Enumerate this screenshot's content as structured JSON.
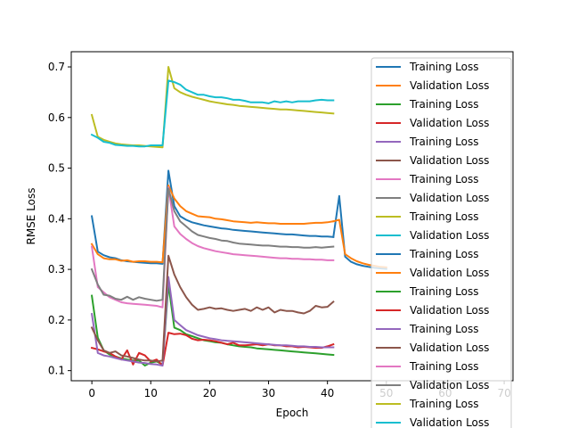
{
  "chart_data": {
    "type": "line",
    "title": "",
    "xlabel": "Epoch",
    "ylabel": "RMSE Loss",
    "xlim": [
      -3.5,
      71.5
    ],
    "ylim": [
      0.08,
      0.73
    ],
    "xticks": [
      0,
      10,
      20,
      30,
      40,
      50,
      60,
      70
    ],
    "yticks": [
      0.1,
      0.2,
      0.3,
      0.4,
      0.5,
      0.6,
      0.7
    ],
    "xtick_labels": [
      "0",
      "10",
      "20",
      "30",
      "40",
      "50",
      "60",
      "70"
    ],
    "ytick_labels": [
      "0.1",
      "0.2",
      "0.3",
      "0.4",
      "0.5",
      "0.6",
      "0.7"
    ],
    "grid": false,
    "legend_position": "top-right",
    "series": [
      {
        "name": "Training Loss",
        "color": "#1f77b4",
        "x": [
          0,
          1,
          2,
          3,
          4,
          5,
          6,
          7,
          8,
          9,
          10,
          11,
          12,
          13,
          14,
          15,
          16,
          17,
          18,
          19,
          20,
          21,
          22,
          23,
          24,
          25,
          26,
          27,
          28,
          29,
          30,
          31,
          32,
          33,
          34,
          35,
          36,
          37,
          38,
          39,
          40,
          41
        ],
        "y": [
          0.405,
          0.335,
          0.328,
          0.324,
          0.322,
          0.318,
          0.316,
          0.315,
          0.314,
          0.313,
          0.312,
          0.312,
          0.311,
          0.495,
          0.425,
          0.405,
          0.398,
          0.393,
          0.39,
          0.387,
          0.385,
          0.383,
          0.381,
          0.38,
          0.378,
          0.377,
          0.376,
          0.375,
          0.374,
          0.373,
          0.372,
          0.371,
          0.37,
          0.369,
          0.369,
          0.368,
          0.367,
          0.366,
          0.366,
          0.365,
          0.365,
          0.364
        ]
      },
      {
        "name": "Validation Loss",
        "color": "#ff7f0e",
        "x": [
          0,
          1,
          2,
          3,
          4,
          5,
          6,
          7,
          8,
          9,
          10,
          11,
          12,
          13,
          14,
          15,
          16,
          17,
          18,
          19,
          20,
          21,
          22,
          23,
          24,
          25,
          26,
          27,
          28,
          29,
          30,
          31,
          32,
          33,
          34,
          35,
          36,
          37,
          38,
          39,
          40,
          41
        ],
        "y": [
          0.35,
          0.33,
          0.322,
          0.32,
          0.32,
          0.317,
          0.318,
          0.315,
          0.316,
          0.316,
          0.315,
          0.315,
          0.314,
          0.466,
          0.44,
          0.425,
          0.415,
          0.41,
          0.405,
          0.404,
          0.403,
          0.4,
          0.399,
          0.397,
          0.395,
          0.394,
          0.393,
          0.392,
          0.393,
          0.392,
          0.391,
          0.391,
          0.39,
          0.39,
          0.39,
          0.39,
          0.39,
          0.391,
          0.392,
          0.392,
          0.393,
          0.395
        ]
      },
      {
        "name": "Training Loss",
        "color": "#2ca02c",
        "x": [
          0,
          1,
          2,
          3,
          4,
          5,
          6,
          7,
          8,
          9,
          10,
          11,
          12,
          13,
          14,
          15,
          16,
          17,
          18,
          19,
          20,
          21,
          22,
          23,
          24,
          25,
          26,
          27,
          28,
          29,
          30,
          31,
          32,
          33,
          34,
          35,
          36,
          37,
          38,
          39,
          40,
          41
        ],
        "y": [
          0.248,
          0.165,
          0.14,
          0.132,
          0.128,
          0.124,
          0.122,
          0.12,
          0.12,
          0.11,
          0.116,
          0.118,
          0.112,
          0.27,
          0.185,
          0.18,
          0.172,
          0.168,
          0.164,
          0.16,
          0.158,
          0.156,
          0.155,
          0.152,
          0.15,
          0.148,
          0.147,
          0.146,
          0.144,
          0.143,
          0.142,
          0.141,
          0.14,
          0.139,
          0.138,
          0.137,
          0.136,
          0.135,
          0.134,
          0.133,
          0.132,
          0.131
        ]
      },
      {
        "name": "Validation Loss",
        "color": "#d62728",
        "x": [
          0,
          1,
          2,
          3,
          4,
          5,
          6,
          7,
          8,
          9,
          10,
          11,
          12,
          13,
          14,
          15,
          16,
          17,
          18,
          19,
          20,
          21,
          22,
          23,
          24,
          25,
          26,
          27,
          28,
          29,
          30,
          31,
          32,
          33,
          34,
          35,
          36,
          37,
          38,
          39,
          40,
          41
        ],
        "y": [
          0.145,
          0.142,
          0.138,
          0.135,
          0.128,
          0.122,
          0.14,
          0.112,
          0.135,
          0.13,
          0.118,
          0.122,
          0.11,
          0.175,
          0.172,
          0.173,
          0.17,
          0.163,
          0.16,
          0.161,
          0.16,
          0.158,
          0.155,
          0.152,
          0.155,
          0.15,
          0.15,
          0.151,
          0.152,
          0.15,
          0.152,
          0.15,
          0.15,
          0.148,
          0.148,
          0.146,
          0.147,
          0.146,
          0.145,
          0.145,
          0.148,
          0.152
        ]
      },
      {
        "name": "Training Loss",
        "color": "#9467bd",
        "x": [
          0,
          1,
          2,
          3,
          4,
          5,
          6,
          7,
          8,
          9,
          10,
          11,
          12,
          13,
          14,
          15,
          16,
          17,
          18,
          19,
          20,
          21,
          22,
          23,
          24,
          25,
          26,
          27,
          28,
          29,
          30,
          31,
          32,
          33,
          34,
          35,
          36,
          37,
          38,
          39,
          40,
          41
        ],
        "y": [
          0.212,
          0.135,
          0.13,
          0.128,
          0.125,
          0.122,
          0.12,
          0.118,
          0.116,
          0.115,
          0.113,
          0.112,
          0.11,
          0.285,
          0.2,
          0.19,
          0.18,
          0.175,
          0.17,
          0.167,
          0.164,
          0.162,
          0.16,
          0.159,
          0.158,
          0.157,
          0.156,
          0.155,
          0.154,
          0.153,
          0.152,
          0.151,
          0.15,
          0.15,
          0.149,
          0.148,
          0.148,
          0.147,
          0.147,
          0.146,
          0.146,
          0.146
        ]
      },
      {
        "name": "Validation Loss",
        "color": "#8c564b",
        "x": [
          0,
          1,
          2,
          3,
          4,
          5,
          6,
          7,
          8,
          9,
          10,
          11,
          12,
          13,
          14,
          15,
          16,
          17,
          18,
          19,
          20,
          21,
          22,
          23,
          24,
          25,
          26,
          27,
          28,
          29,
          30,
          31,
          32,
          33,
          34,
          35,
          36,
          37,
          38,
          39,
          40,
          41
        ],
        "y": [
          0.185,
          0.16,
          0.14,
          0.135,
          0.138,
          0.13,
          0.128,
          0.125,
          0.122,
          0.12,
          0.12,
          0.118,
          0.12,
          0.327,
          0.29,
          0.265,
          0.245,
          0.23,
          0.22,
          0.222,
          0.225,
          0.222,
          0.223,
          0.22,
          0.218,
          0.22,
          0.222,
          0.218,
          0.225,
          0.22,
          0.225,
          0.215,
          0.22,
          0.218,
          0.218,
          0.215,
          0.213,
          0.218,
          0.228,
          0.225,
          0.226,
          0.236
        ]
      },
      {
        "name": "Training Loss",
        "color": "#e377c2",
        "x": [
          0,
          1,
          2,
          3,
          4,
          5,
          6,
          7,
          8,
          9,
          10,
          11,
          12,
          13,
          14,
          15,
          16,
          17,
          18,
          19,
          20,
          21,
          22,
          23,
          24,
          25,
          26,
          27,
          28,
          29,
          30,
          31,
          32,
          33,
          34,
          35,
          36,
          37,
          38,
          39,
          40,
          41
        ],
        "y": [
          0.345,
          0.265,
          0.255,
          0.245,
          0.24,
          0.235,
          0.233,
          0.232,
          0.231,
          0.23,
          0.229,
          0.228,
          0.225,
          0.462,
          0.385,
          0.37,
          0.36,
          0.352,
          0.346,
          0.342,
          0.339,
          0.336,
          0.334,
          0.332,
          0.33,
          0.329,
          0.328,
          0.327,
          0.326,
          0.325,
          0.324,
          0.323,
          0.322,
          0.322,
          0.321,
          0.321,
          0.32,
          0.32,
          0.319,
          0.319,
          0.318,
          0.318
        ]
      },
      {
        "name": "Validation Loss",
        "color": "#7f7f7f",
        "x": [
          0,
          1,
          2,
          3,
          4,
          5,
          6,
          7,
          8,
          9,
          10,
          11,
          12,
          13,
          14,
          15,
          16,
          17,
          18,
          19,
          20,
          21,
          22,
          23,
          24,
          25,
          26,
          27,
          28,
          29,
          30,
          31,
          32,
          33,
          34,
          35,
          36,
          37,
          38,
          39,
          40,
          41
        ],
        "y": [
          0.3,
          0.27,
          0.25,
          0.248,
          0.242,
          0.24,
          0.246,
          0.24,
          0.245,
          0.242,
          0.24,
          0.238,
          0.24,
          0.46,
          0.415,
          0.395,
          0.385,
          0.375,
          0.368,
          0.365,
          0.362,
          0.36,
          0.357,
          0.356,
          0.353,
          0.351,
          0.35,
          0.349,
          0.348,
          0.347,
          0.347,
          0.346,
          0.345,
          0.345,
          0.344,
          0.344,
          0.343,
          0.343,
          0.344,
          0.343,
          0.344,
          0.345
        ]
      },
      {
        "name": "Training Loss",
        "color": "#bcbd22",
        "x": [
          0,
          1,
          2,
          3,
          4,
          5,
          6,
          7,
          8,
          9,
          10,
          11,
          12,
          13,
          14,
          15,
          16,
          17,
          18,
          19,
          20,
          21,
          22,
          23,
          24,
          25,
          26,
          27,
          28,
          29,
          30,
          31,
          32,
          33,
          34,
          35,
          36,
          37,
          38,
          39,
          40,
          41
        ],
        "y": [
          0.605,
          0.562,
          0.556,
          0.552,
          0.549,
          0.547,
          0.546,
          0.545,
          0.545,
          0.544,
          0.543,
          0.542,
          0.541,
          0.7,
          0.658,
          0.65,
          0.645,
          0.641,
          0.638,
          0.635,
          0.632,
          0.63,
          0.628,
          0.626,
          0.625,
          0.623,
          0.622,
          0.621,
          0.62,
          0.619,
          0.618,
          0.617,
          0.616,
          0.616,
          0.615,
          0.614,
          0.613,
          0.612,
          0.611,
          0.61,
          0.609,
          0.608
        ]
      },
      {
        "name": "Validation Loss",
        "color": "#17becf",
        "x": [
          0,
          1,
          2,
          3,
          4,
          5,
          6,
          7,
          8,
          9,
          10,
          11,
          12,
          13,
          14,
          15,
          16,
          17,
          18,
          19,
          20,
          21,
          22,
          23,
          24,
          25,
          26,
          27,
          28,
          29,
          30,
          31,
          32,
          33,
          34,
          35,
          36,
          37,
          38,
          39,
          40,
          41
        ],
        "y": [
          0.566,
          0.56,
          0.552,
          0.55,
          0.546,
          0.545,
          0.544,
          0.544,
          0.543,
          0.543,
          0.545,
          0.545,
          0.545,
          0.673,
          0.67,
          0.665,
          0.655,
          0.65,
          0.645,
          0.645,
          0.642,
          0.64,
          0.64,
          0.638,
          0.635,
          0.635,
          0.633,
          0.63,
          0.63,
          0.63,
          0.628,
          0.632,
          0.63,
          0.632,
          0.63,
          0.632,
          0.632,
          0.632,
          0.634,
          0.635,
          0.634,
          0.634
        ]
      },
      {
        "name": "Training Loss",
        "color": "#1f77b4",
        "x": [
          41,
          42,
          43,
          44,
          45,
          46,
          47,
          48,
          49,
          50
        ],
        "y": [
          0.364,
          0.445,
          0.325,
          0.315,
          0.31,
          0.307,
          0.305,
          0.303,
          0.302,
          0.301
        ]
      },
      {
        "name": "Validation Loss",
        "color": "#ff7f0e",
        "x": [
          41,
          42,
          43,
          44,
          45,
          46,
          47,
          48,
          49,
          50
        ],
        "y": [
          0.395,
          0.398,
          0.33,
          0.322,
          0.316,
          0.312,
          0.309,
          0.307,
          0.305,
          0.304
        ]
      },
      {
        "name": "Training Loss",
        "color": "#2ca02c",
        "x": [],
        "y": []
      },
      {
        "name": "Validation Loss",
        "color": "#d62728",
        "x": [],
        "y": []
      },
      {
        "name": "Training Loss",
        "color": "#9467bd",
        "x": [],
        "y": []
      },
      {
        "name": "Validation Loss",
        "color": "#8c564b",
        "x": [],
        "y": []
      },
      {
        "name": "Training Loss",
        "color": "#e377c2",
        "x": [],
        "y": []
      },
      {
        "name": "Validation Loss",
        "color": "#7f7f7f",
        "x": [],
        "y": []
      },
      {
        "name": "Training Loss",
        "color": "#bcbd22",
        "x": [],
        "y": []
      },
      {
        "name": "Validation Loss",
        "color": "#17becf",
        "x": [],
        "y": []
      }
    ]
  }
}
